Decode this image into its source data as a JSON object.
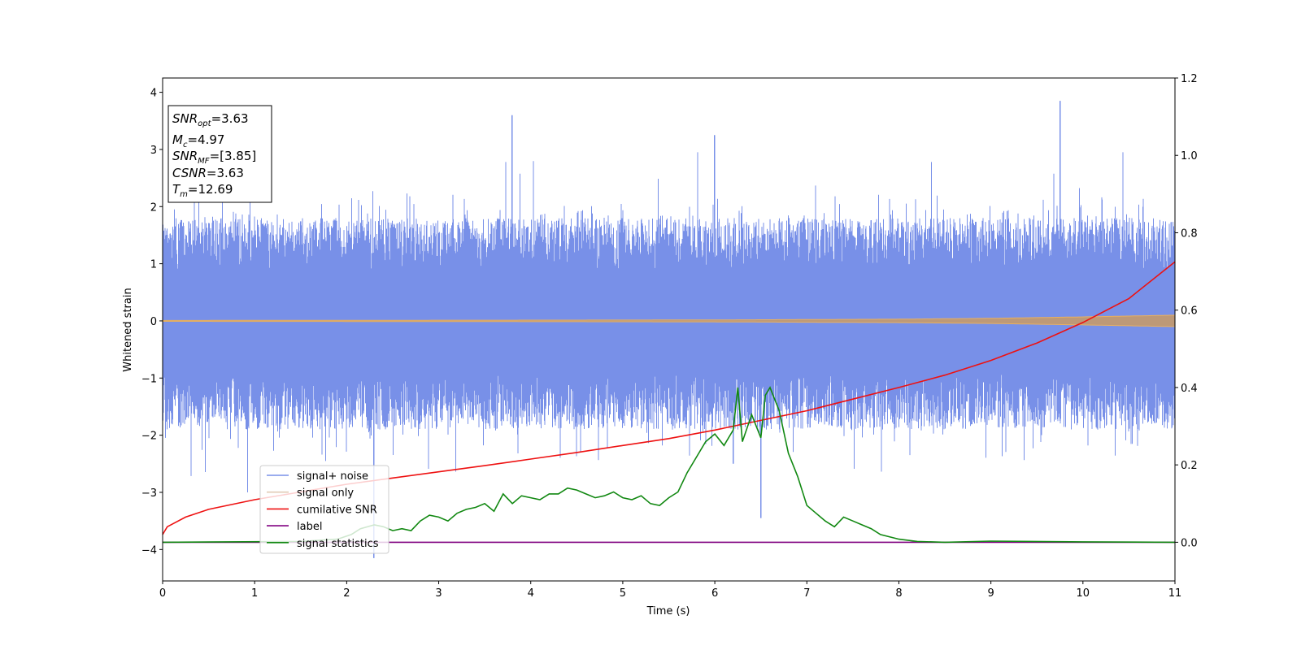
{
  "chart_data": {
    "type": "line",
    "xlabel": "Time (s)",
    "ylabel": "Whitened strain",
    "xlim": [
      0,
      11
    ],
    "ylim": [
      -4.55,
      4.25
    ],
    "y2lim": [
      -0.1,
      1.2
    ],
    "x_ticks": [
      "0",
      "1",
      "2",
      "3",
      "4",
      "5",
      "6",
      "7",
      "8",
      "9",
      "10",
      "11"
    ],
    "y_ticks": [
      "4",
      "3",
      "2",
      "1",
      "0",
      "−1",
      "−2",
      "−3",
      "−4"
    ],
    "y2_ticks": [
      "1.2",
      "1.0",
      "0.8",
      "0.6",
      "0.4",
      "0.2",
      "0.0"
    ],
    "grid": false,
    "legend_position": "lower-left",
    "info_box": {
      "position": "upper-left",
      "lines": [
        {
          "main": "SNR",
          "sub": "opt",
          "value": "=3.63"
        },
        {
          "main": "M",
          "sub": "c",
          "value": "=4.97"
        },
        {
          "main": "SNR",
          "sub": "MF",
          "value": "=[3.85]"
        },
        {
          "main": "CSNR",
          "sub": "",
          "value": "=3.63"
        },
        {
          "main": "T",
          "sub": "m",
          "value": "=12.69"
        }
      ]
    },
    "series": [
      {
        "name": "signal+ noise",
        "axis": "left",
        "color": "#7890e8",
        "description": "dense whitened noise, std approx 0.75, spans about -3.5 to 3.9",
        "notable_peaks": [
          [
            3.8,
            3.6
          ],
          [
            9.75,
            3.85
          ],
          [
            6.0,
            3.25
          ],
          [
            6.2,
            -2.5
          ],
          [
            6.5,
            -3.45
          ],
          [
            2.3,
            -4.15
          ]
        ]
      },
      {
        "name": "signal only",
        "axis": "left",
        "color": "#c8a078",
        "description": "chirp amplitude growing from ~0.01 to ~0.1",
        "envelope": {
          "t": [
            0,
            2,
            4,
            6,
            8,
            9,
            10,
            11
          ],
          "amp": [
            0.008,
            0.01,
            0.013,
            0.017,
            0.03,
            0.045,
            0.07,
            0.1
          ]
        }
      },
      {
        "name": "cumilative SNR",
        "axis": "right",
        "color": "#ee1111",
        "x": [
          0,
          0.05,
          0.25,
          0.5,
          1,
          1.5,
          2,
          2.5,
          3,
          3.5,
          4,
          4.5,
          5,
          5.5,
          6,
          6.5,
          7,
          7.5,
          8,
          8.5,
          9,
          9.5,
          10,
          10.5,
          11
        ],
        "y": [
          0.02,
          0.04,
          0.065,
          0.085,
          0.11,
          0.13,
          0.15,
          0.166,
          0.182,
          0.198,
          0.215,
          0.232,
          0.25,
          0.268,
          0.29,
          0.315,
          0.34,
          0.37,
          0.4,
          0.432,
          0.47,
          0.515,
          0.568,
          0.63,
          0.725
        ]
      },
      {
        "name": "label",
        "axis": "right",
        "color": "#800080",
        "x": [
          0,
          11
        ],
        "y": [
          0.0,
          0.0
        ]
      },
      {
        "name": "signal statistics",
        "axis": "right",
        "color": "#118811",
        "x": [
          0,
          1.5,
          1.9,
          2.05,
          2.15,
          2.3,
          2.4,
          2.5,
          2.6,
          2.7,
          2.8,
          2.9,
          3.0,
          3.1,
          3.2,
          3.3,
          3.4,
          3.5,
          3.6,
          3.7,
          3.8,
          3.9,
          4.0,
          4.1,
          4.2,
          4.3,
          4.4,
          4.5,
          4.6,
          4.7,
          4.8,
          4.9,
          5.0,
          5.1,
          5.2,
          5.3,
          5.4,
          5.5,
          5.6,
          5.7,
          5.8,
          5.9,
          6.0,
          6.1,
          6.2,
          6.25,
          6.3,
          6.4,
          6.5,
          6.55,
          6.6,
          6.7,
          6.8,
          6.9,
          7.0,
          7.1,
          7.2,
          7.3,
          7.4,
          7.5,
          7.6,
          7.7,
          7.8,
          8.0,
          8.2,
          8.5,
          9.0,
          10.0,
          11.0
        ],
        "y": [
          0.0,
          0.002,
          0.008,
          0.02,
          0.035,
          0.045,
          0.04,
          0.03,
          0.035,
          0.03,
          0.055,
          0.07,
          0.065,
          0.055,
          0.075,
          0.085,
          0.09,
          0.1,
          0.08,
          0.125,
          0.1,
          0.12,
          0.115,
          0.11,
          0.125,
          0.125,
          0.14,
          0.135,
          0.125,
          0.115,
          0.12,
          0.13,
          0.115,
          0.11,
          0.12,
          0.1,
          0.095,
          0.115,
          0.13,
          0.18,
          0.22,
          0.26,
          0.28,
          0.25,
          0.29,
          0.4,
          0.26,
          0.33,
          0.27,
          0.38,
          0.4,
          0.34,
          0.23,
          0.17,
          0.095,
          0.075,
          0.055,
          0.04,
          0.065,
          0.055,
          0.045,
          0.035,
          0.02,
          0.008,
          0.002,
          0.0,
          0.003,
          0.001,
          0.0
        ]
      }
    ]
  }
}
